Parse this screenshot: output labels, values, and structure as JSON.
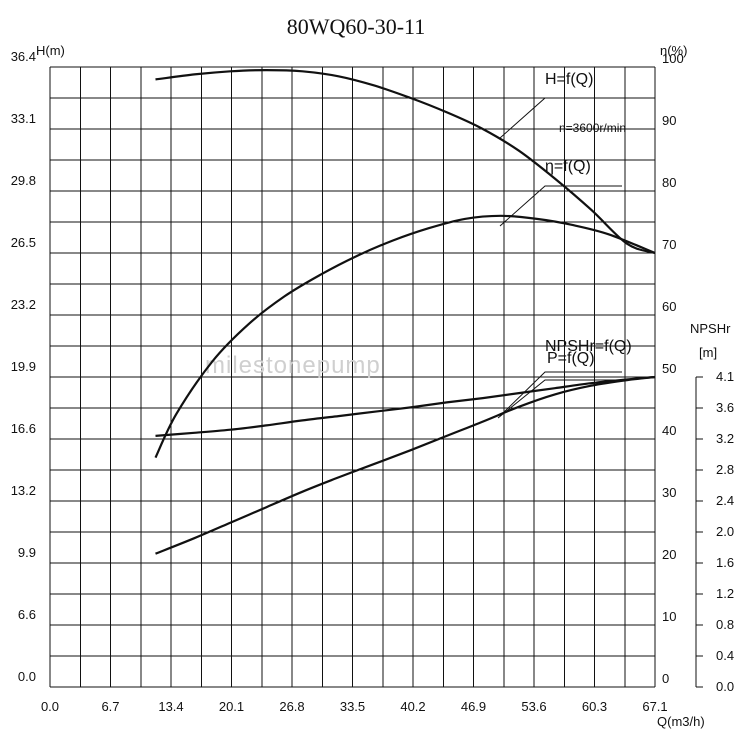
{
  "chart_data": {
    "type": "line",
    "title": "80WQ60-30-11",
    "x_axis": {
      "label": "Q(m3/h)",
      "ticks": [
        "0.0",
        "6.7",
        "13.4",
        "20.1",
        "26.8",
        "33.5",
        "40.2",
        "46.9",
        "53.6",
        "60.3",
        "67.1"
      ],
      "range": [
        0,
        67.1
      ]
    },
    "y_axis_left": {
      "label": "H(m)",
      "ticks": [
        "0.0",
        "6.6",
        "9.9",
        "13.2",
        "16.6",
        "19.9",
        "23.2",
        "26.5",
        "29.8",
        "33.1",
        "36.4"
      ]
    },
    "y_axis_right": {
      "label": "η(%)",
      "ticks": [
        "0",
        "10",
        "20",
        "30",
        "40",
        "50",
        "60",
        "70",
        "80",
        "90",
        "100"
      ],
      "range": [
        0,
        100
      ]
    },
    "y_axis_npshr": {
      "label_line1": "NPSHr",
      "label_line2": "[m]",
      "ticks": [
        "0.0",
        "0.4",
        "0.8",
        "1.2",
        "1.6",
        "2.0",
        "2.4",
        "2.8",
        "3.2",
        "3.6",
        "4.1"
      ]
    },
    "speed_note": "n=3600r/min",
    "watermark": "milestonepump",
    "series": [
      {
        "name": "H=f(Q)",
        "axis": "right_scale",
        "x": [
          11.7,
          16,
          20,
          24,
          28,
          32,
          36,
          40,
          44,
          48,
          52,
          56,
          60,
          64,
          67.1
        ],
        "y": [
          98,
          98.8,
          99.3,
          99.5,
          99.3,
          98.5,
          97,
          95,
          92.7,
          90,
          86.5,
          82,
          77,
          71.5,
          70
        ]
      },
      {
        "name": "η=f(Q)",
        "axis": "right_scale",
        "x": [
          11.7,
          14,
          18,
          22,
          26,
          30,
          34,
          38,
          42,
          46,
          50,
          54,
          58,
          62,
          67.1
        ],
        "y": [
          37,
          44,
          52.5,
          58.5,
          63,
          66.5,
          69.5,
          72,
          74,
          75.5,
          76,
          75.5,
          74.5,
          73,
          70
        ]
      },
      {
        "name": "NPSHr=f(Q)",
        "axis": "right_scale",
        "x": [
          11.7,
          16,
          20,
          24,
          28,
          32,
          36,
          40,
          44,
          48,
          52,
          56,
          60,
          64,
          67.1
        ],
        "y": [
          40.5,
          41,
          41.5,
          42.2,
          43,
          43.7,
          44.4,
          45.1,
          45.9,
          46.6,
          47.4,
          48.2,
          49,
          49.6,
          50
        ]
      },
      {
        "name": "P=f(Q)",
        "axis": "right_scale",
        "x": [
          11.7,
          16,
          20,
          24,
          28,
          32,
          36,
          40,
          44,
          48,
          52,
          56,
          60,
          64,
          67.1
        ],
        "y": [
          21.5,
          24,
          26.5,
          29,
          31.5,
          33.8,
          36,
          38.2,
          40.5,
          42.8,
          45.2,
          47.2,
          48.6,
          49.5,
          50
        ]
      }
    ],
    "grid": true,
    "legend": "curve labels with leader lines, upper right"
  }
}
